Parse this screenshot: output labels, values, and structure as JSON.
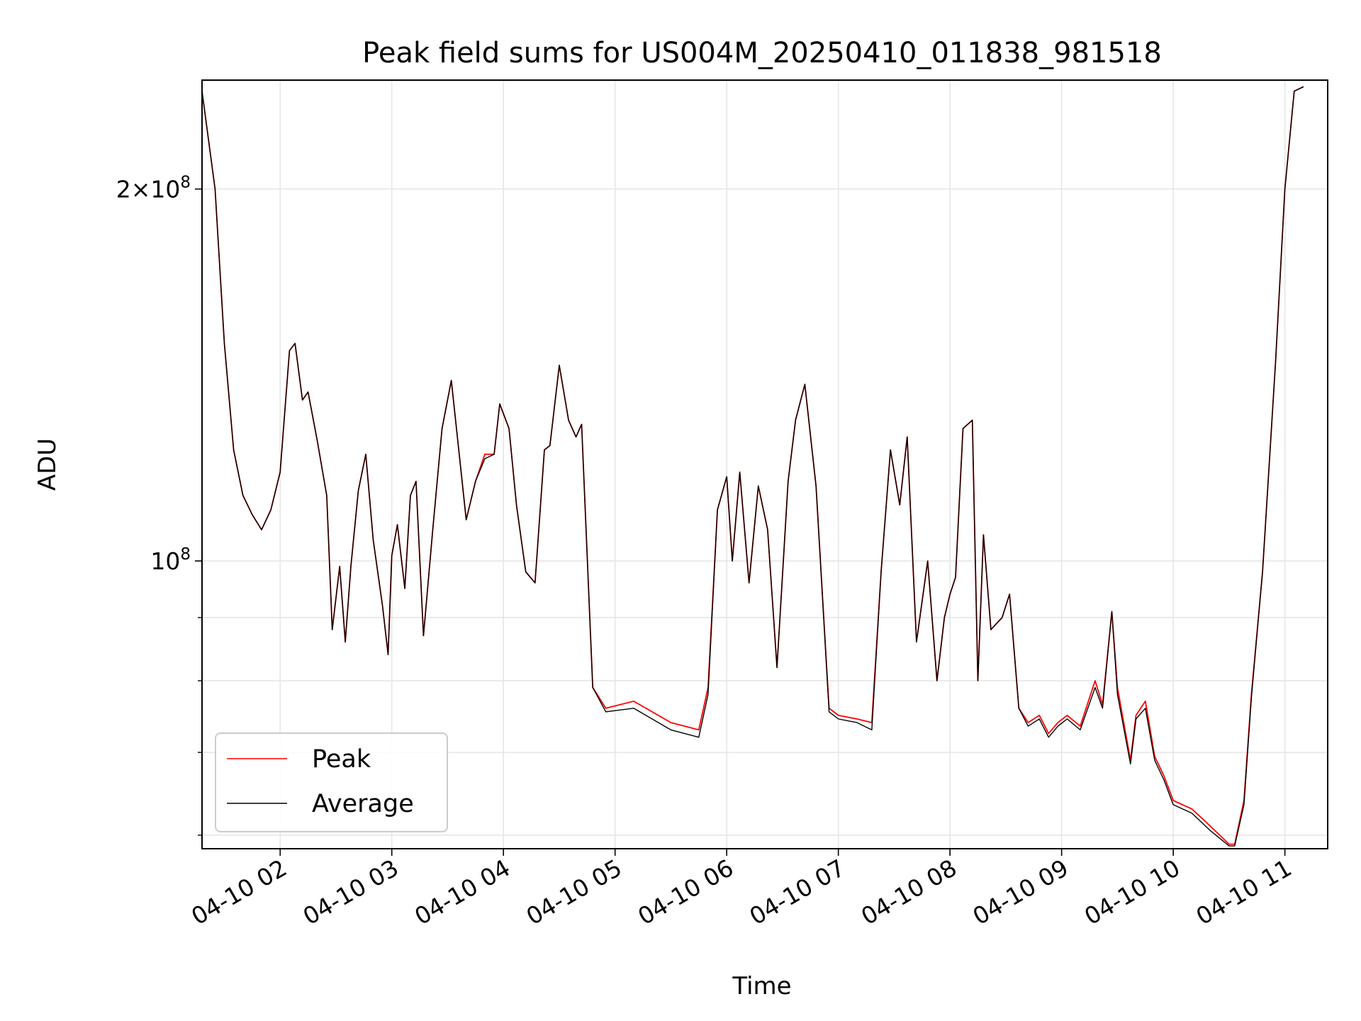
{
  "chart_data": {
    "type": "line",
    "title": "Peak field sums for US004M_20250410_011838_981518",
    "xlabel": "Time",
    "ylabel": "ADU",
    "y_scale": "log",
    "ylim": [
      58500000,
      245000000
    ],
    "xlim": [
      "04-10 01:18",
      "04-10 11:23"
    ],
    "x_ticks": [
      "04-10 02",
      "04-10 03",
      "04-10 04",
      "04-10 05",
      "04-10 06",
      "04-10 07",
      "04-10 08",
      "04-10 09",
      "04-10 10",
      "04-10 11"
    ],
    "y_tick_labels": [
      {
        "value": 100000000,
        "mantissa": "",
        "exponent": "8",
        "base": "10"
      },
      {
        "value": 200000000,
        "mantissa": "2×",
        "exponent": "8",
        "base": "10"
      }
    ],
    "grid": true,
    "legend": {
      "position": "lower-left",
      "entries": [
        "Peak",
        "Average"
      ]
    },
    "colors": {
      "peak": "#ff0000",
      "average": "#000000",
      "grid": "#e6e6e6"
    },
    "x": [
      "04-10 01:18",
      "04-10 01:25",
      "04-10 01:30",
      "04-10 01:35",
      "04-10 01:40",
      "04-10 01:45",
      "04-10 01:50",
      "04-10 01:55",
      "04-10 02:00",
      "04-10 02:05",
      "04-10 02:08",
      "04-10 02:12",
      "04-10 02:15",
      "04-10 02:20",
      "04-10 02:25",
      "04-10 02:28",
      "04-10 02:32",
      "04-10 02:35",
      "04-10 02:38",
      "04-10 02:42",
      "04-10 02:46",
      "04-10 02:50",
      "04-10 02:55",
      "04-10 02:58",
      "04-10 03:00",
      "04-10 03:03",
      "04-10 03:07",
      "04-10 03:10",
      "04-10 03:13",
      "04-10 03:17",
      "04-10 03:22",
      "04-10 03:27",
      "04-10 03:32",
      "04-10 03:35",
      "04-10 03:40",
      "04-10 03:45",
      "04-10 03:50",
      "04-10 03:55",
      "04-10 03:58",
      "04-10 04:03",
      "04-10 04:07",
      "04-10 04:12",
      "04-10 04:17",
      "04-10 04:22",
      "04-10 04:25",
      "04-10 04:30",
      "04-10 04:35",
      "04-10 04:39",
      "04-10 04:42",
      "04-10 04:48",
      "04-10 04:55",
      "04-10 05:10",
      "04-10 05:30",
      "04-10 05:45",
      "04-10 05:50",
      "04-10 05:55",
      "04-10 06:00",
      "04-10 06:03",
      "04-10 06:07",
      "04-10 06:12",
      "04-10 06:17",
      "04-10 06:22",
      "04-10 06:27",
      "04-10 06:33",
      "04-10 06:37",
      "04-10 06:42",
      "04-10 06:48",
      "04-10 06:55",
      "04-10 07:00",
      "04-10 07:10",
      "04-10 07:18",
      "04-10 07:23",
      "04-10 07:28",
      "04-10 07:33",
      "04-10 07:37",
      "04-10 07:42",
      "04-10 07:48",
      "04-10 07:53",
      "04-10 07:57",
      "04-10 08:00",
      "04-10 08:03",
      "04-10 08:07",
      "04-10 08:12",
      "04-10 08:15",
      "04-10 08:18",
      "04-10 08:22",
      "04-10 08:28",
      "04-10 08:32",
      "04-10 08:37",
      "04-10 08:42",
      "04-10 08:48",
      "04-10 08:53",
      "04-10 08:58",
      "04-10 09:03",
      "04-10 09:10",
      "04-10 09:18",
      "04-10 09:22",
      "04-10 09:27",
      "04-10 09:30",
      "04-10 09:37",
      "04-10 09:40",
      "04-10 09:45",
      "04-10 09:50",
      "04-10 09:55",
      "04-10 10:00",
      "04-10 10:10",
      "04-10 10:20",
      "04-10 10:30",
      "04-10 10:33",
      "04-10 10:38",
      "04-10 10:42",
      "04-10 10:48",
      "04-10 10:55",
      "04-10 11:00",
      "04-10 11:05",
      "04-10 11:10"
    ],
    "series": [
      {
        "name": "Peak",
        "values": [
          240000000,
          200000000,
          150000000,
          123000000,
          113000000,
          109000000,
          106000000,
          110000000,
          118000000,
          148000000,
          150000000,
          135000000,
          137000000,
          125000000,
          113000000,
          88000000,
          99000000,
          86000000,
          99000000,
          114000000,
          122000000,
          104000000,
          92000000,
          84000000,
          101000000,
          107000000,
          95000000,
          113000000,
          116000000,
          87000000,
          106000000,
          128000000,
          140000000,
          127000000,
          108000000,
          116000000,
          122000000,
          122000000,
          134000000,
          128000000,
          111000000,
          98000000,
          96000000,
          123000000,
          124000000,
          144000000,
          130000000,
          126000000,
          129000000,
          79000000,
          76000000,
          77000000,
          74000000,
          73000000,
          79000000,
          110000000,
          117000000,
          100000000,
          118000000,
          96000000,
          115000000,
          106000000,
          82000000,
          116000000,
          130000000,
          139000000,
          115000000,
          76000000,
          75000000,
          74500000,
          74000000,
          98000000,
          123000000,
          111000000,
          126000000,
          86000000,
          100000000,
          80000000,
          90000000,
          94000000,
          97000000,
          128000000,
          130000000,
          80000000,
          105000000,
          88000000,
          90000000,
          94000000,
          76000000,
          74000000,
          75000000,
          72500000,
          74000000,
          75000000,
          73500000,
          80000000,
          76500000,
          91000000,
          79000000,
          69000000,
          75000000,
          77000000,
          69500000,
          67000000,
          64000000,
          63000000,
          61000000,
          59000000,
          59000000,
          64000000,
          78000000,
          98000000,
          145000000,
          200000000,
          240000000,
          242000000
        ]
      },
      {
        "name": "Average",
        "values": [
          240000000,
          200000000,
          150000000,
          123000000,
          113000000,
          109000000,
          106000000,
          110000000,
          118000000,
          148000000,
          150000000,
          135000000,
          137000000,
          125000000,
          113000000,
          88000000,
          99000000,
          86000000,
          99000000,
          114000000,
          122000000,
          104000000,
          92000000,
          84000000,
          101000000,
          107000000,
          95000000,
          113000000,
          116000000,
          87000000,
          106000000,
          128000000,
          140000000,
          127000000,
          108000000,
          116000000,
          121000000,
          122000000,
          134000000,
          128000000,
          111000000,
          98000000,
          96000000,
          123000000,
          124000000,
          144000000,
          130000000,
          126000000,
          129000000,
          79000000,
          75500000,
          76000000,
          73000000,
          72000000,
          78000000,
          110000000,
          117000000,
          100000000,
          118000000,
          96000000,
          115000000,
          106000000,
          82000000,
          116000000,
          130000000,
          139000000,
          115000000,
          75500000,
          74500000,
          74000000,
          73000000,
          98000000,
          123000000,
          111000000,
          126000000,
          86000000,
          100000000,
          80000000,
          90000000,
          94000000,
          97000000,
          128000000,
          130000000,
          80000000,
          105000000,
          88000000,
          90000000,
          94000000,
          76000000,
          73500000,
          74500000,
          72000000,
          73500000,
          74500000,
          73000000,
          79000000,
          76000000,
          91000000,
          78000000,
          68500000,
          74500000,
          76000000,
          69000000,
          66500000,
          63500000,
          62500000,
          60500000,
          58800000,
          58800000,
          63500000,
          77500000,
          98000000,
          145000000,
          200000000,
          240000000,
          242000000
        ]
      }
    ]
  }
}
